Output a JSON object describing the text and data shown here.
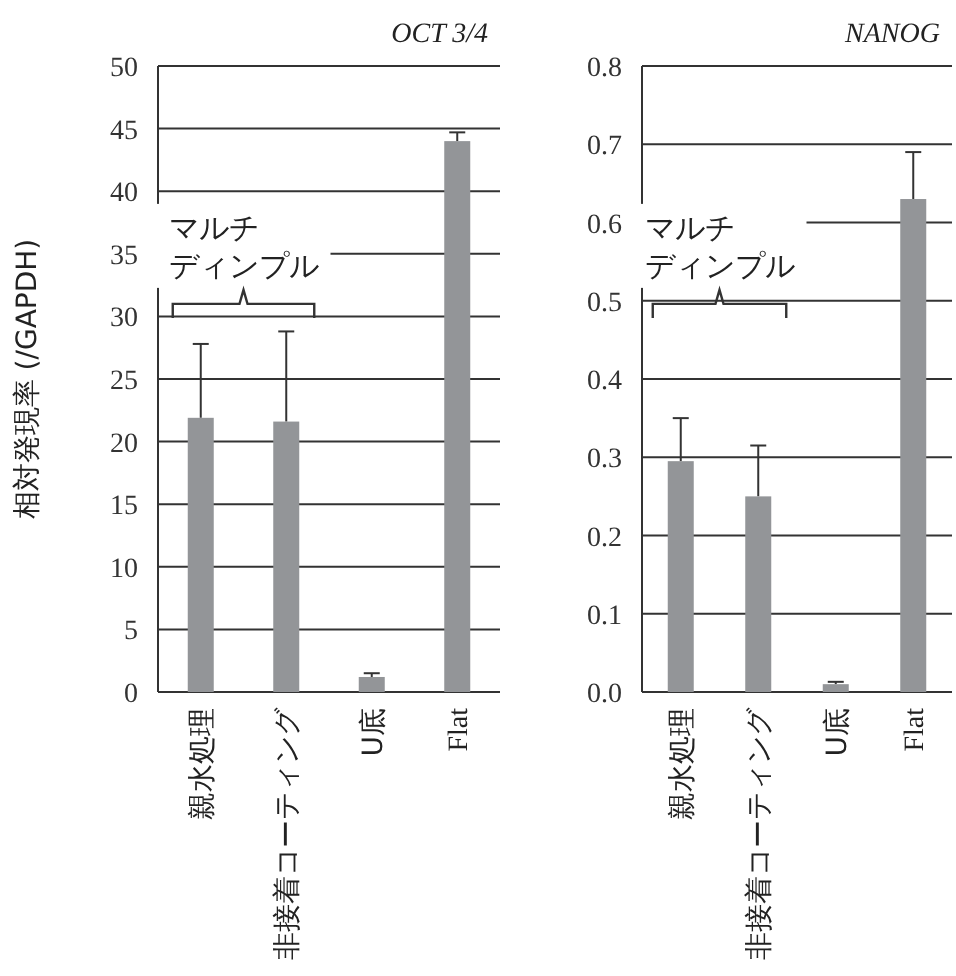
{
  "chart_data": [
    {
      "type": "bar",
      "title": "OCT 3/4",
      "ylabel": "相対発現率 (/GAPDH)",
      "categories": [
        "親水処理",
        "非接着コーティング",
        "U底",
        "Flat"
      ],
      "values": [
        21.9,
        21.6,
        1.2,
        44.0
      ],
      "errors": [
        [
          21.9,
          27.8
        ],
        [
          21.6,
          28.8
        ],
        [
          1.2,
          1.5
        ],
        [
          44.0,
          44.7
        ]
      ],
      "color": "#939598",
      "ylim": [
        0,
        50
      ],
      "yticks": [
        0,
        5,
        10,
        15,
        20,
        25,
        30,
        35,
        40,
        45,
        50
      ],
      "grid": "y",
      "annotations": [
        "マルチ",
        "ディンプル"
      ]
    },
    {
      "type": "bar",
      "title": "NANOG",
      "categories": [
        "親水処理",
        "非接着コーティング",
        "U底",
        "Flat"
      ],
      "values": [
        0.295,
        0.25,
        0.01,
        0.63
      ],
      "errors": [
        [
          0.295,
          0.35
        ],
        [
          0.25,
          0.315
        ],
        [
          0.01,
          0.013
        ],
        [
          0.63,
          0.69
        ]
      ],
      "color": "#939598",
      "ylim": [
        0,
        0.8
      ],
      "yticks": [
        {
          "value": 0,
          "label": "0.0"
        },
        0.1,
        0.2,
        0.3,
        0.4,
        0.5,
        0.6,
        0.7,
        0.8
      ],
      "grid": "y",
      "annotations": [
        "マルチ",
        "ディンプル"
      ]
    }
  ]
}
